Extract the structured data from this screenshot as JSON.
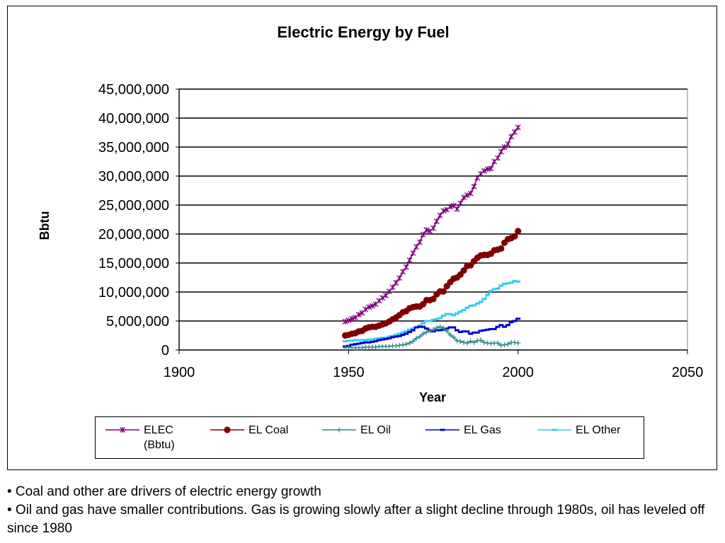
{
  "chart_data": {
    "type": "line",
    "title": "Electric Energy by Fuel",
    "xlabel": "Year",
    "ylabel": "Bbtu",
    "xlim": [
      1900,
      2050
    ],
    "ylim": [
      0,
      45000000
    ],
    "xticks": [
      "1900",
      "1950",
      "2000",
      "2050"
    ],
    "yticks": [
      "0",
      "5,000,000",
      "10,000,000",
      "15,000,000",
      "20,000,000",
      "25,000,000",
      "30,000,000",
      "35,000,000",
      "40,000,000",
      "45,000,000"
    ],
    "grid": true,
    "legend_position": "bottom",
    "series": [
      {
        "name": "ELEC (Bbtu)",
        "color": "#800080",
        "marker": "star",
        "points": [
          [
            1949,
            4900000
          ],
          [
            1950,
            5100000
          ],
          [
            1951,
            5400000
          ],
          [
            1952,
            5600000
          ],
          [
            1953,
            6100000
          ],
          [
            1954,
            6400000
          ],
          [
            1955,
            7000000
          ],
          [
            1956,
            7400000
          ],
          [
            1957,
            7600000
          ],
          [
            1958,
            7900000
          ],
          [
            1959,
            8500000
          ],
          [
            1960,
            9000000
          ],
          [
            1961,
            9400000
          ],
          [
            1962,
            10100000
          ],
          [
            1963,
            10800000
          ],
          [
            1964,
            11600000
          ],
          [
            1965,
            12400000
          ],
          [
            1966,
            13500000
          ],
          [
            1967,
            14300000
          ],
          [
            1968,
            15500000
          ],
          [
            1969,
            16700000
          ],
          [
            1970,
            17800000
          ],
          [
            1971,
            18600000
          ],
          [
            1972,
            19900000
          ],
          [
            1973,
            20700000
          ],
          [
            1974,
            20500000
          ],
          [
            1975,
            21000000
          ],
          [
            1976,
            22200000
          ],
          [
            1977,
            23200000
          ],
          [
            1978,
            24000000
          ],
          [
            1979,
            24200000
          ],
          [
            1980,
            24700000
          ],
          [
            1981,
            24900000
          ],
          [
            1982,
            24300000
          ],
          [
            1983,
            25300000
          ],
          [
            1984,
            26300000
          ],
          [
            1985,
            26700000
          ],
          [
            1986,
            27000000
          ],
          [
            1987,
            28200000
          ],
          [
            1988,
            29700000
          ],
          [
            1989,
            30400000
          ],
          [
            1990,
            30900000
          ],
          [
            1991,
            31200000
          ],
          [
            1992,
            31300000
          ],
          [
            1993,
            32500000
          ],
          [
            1994,
            33100000
          ],
          [
            1995,
            34200000
          ],
          [
            1996,
            35000000
          ],
          [
            1997,
            35500000
          ],
          [
            1998,
            36800000
          ],
          [
            1999,
            37600000
          ],
          [
            2000,
            38400000
          ]
        ]
      },
      {
        "name": "EL Coal",
        "color": "#800000",
        "marker": "circle",
        "points": [
          [
            1949,
            2500000
          ],
          [
            1950,
            2600000
          ],
          [
            1951,
            2800000
          ],
          [
            1952,
            2900000
          ],
          [
            1953,
            3200000
          ],
          [
            1954,
            3300000
          ],
          [
            1955,
            3700000
          ],
          [
            1956,
            3900000
          ],
          [
            1957,
            4000000
          ],
          [
            1958,
            4000000
          ],
          [
            1959,
            4200000
          ],
          [
            1960,
            4400000
          ],
          [
            1961,
            4600000
          ],
          [
            1962,
            4900000
          ],
          [
            1963,
            5300000
          ],
          [
            1964,
            5600000
          ],
          [
            1965,
            6000000
          ],
          [
            1966,
            6500000
          ],
          [
            1967,
            6700000
          ],
          [
            1968,
            7200000
          ],
          [
            1969,
            7400000
          ],
          [
            1970,
            7500000
          ],
          [
            1971,
            7500000
          ],
          [
            1972,
            7900000
          ],
          [
            1973,
            8600000
          ],
          [
            1974,
            8600000
          ],
          [
            1975,
            8800000
          ],
          [
            1976,
            9600000
          ],
          [
            1977,
            10100000
          ],
          [
            1978,
            10100000
          ],
          [
            1979,
            11000000
          ],
          [
            1980,
            11700000
          ],
          [
            1981,
            12300000
          ],
          [
            1982,
            12500000
          ],
          [
            1983,
            13000000
          ],
          [
            1984,
            13700000
          ],
          [
            1985,
            14500000
          ],
          [
            1986,
            14600000
          ],
          [
            1987,
            15300000
          ],
          [
            1988,
            15900000
          ],
          [
            1989,
            16300000
          ],
          [
            1990,
            16400000
          ],
          [
            1991,
            16400000
          ],
          [
            1992,
            16600000
          ],
          [
            1993,
            17200000
          ],
          [
            1994,
            17300000
          ],
          [
            1995,
            17500000
          ],
          [
            1996,
            18500000
          ],
          [
            1997,
            19100000
          ],
          [
            1998,
            19300000
          ],
          [
            1999,
            19600000
          ],
          [
            2000,
            20500000
          ]
        ]
      },
      {
        "name": "EL Oil",
        "color": "#2E8B8B",
        "marker": "plus",
        "points": [
          [
            1949,
            400000
          ],
          [
            1950,
            500000
          ],
          [
            1951,
            400000
          ],
          [
            1952,
            400000
          ],
          [
            1953,
            400000
          ],
          [
            1954,
            400000
          ],
          [
            1955,
            500000
          ],
          [
            1956,
            500000
          ],
          [
            1957,
            500000
          ],
          [
            1958,
            500000
          ],
          [
            1959,
            600000
          ],
          [
            1960,
            600000
          ],
          [
            1961,
            600000
          ],
          [
            1962,
            600000
          ],
          [
            1963,
            700000
          ],
          [
            1964,
            700000
          ],
          [
            1965,
            800000
          ],
          [
            1966,
            900000
          ],
          [
            1967,
            1000000
          ],
          [
            1968,
            1200000
          ],
          [
            1969,
            1500000
          ],
          [
            1970,
            2000000
          ],
          [
            1971,
            2300000
          ],
          [
            1972,
            2800000
          ],
          [
            1973,
            3100000
          ],
          [
            1974,
            3300000
          ],
          [
            1975,
            3500000
          ],
          [
            1976,
            3800000
          ],
          [
            1977,
            4000000
          ],
          [
            1978,
            3800000
          ],
          [
            1979,
            3300000
          ],
          [
            1980,
            2600000
          ],
          [
            1981,
            2200000
          ],
          [
            1982,
            1600000
          ],
          [
            1983,
            1500000
          ],
          [
            1984,
            1300000
          ],
          [
            1985,
            1200000
          ],
          [
            1986,
            1500000
          ],
          [
            1987,
            1300000
          ],
          [
            1988,
            1600000
          ],
          [
            1989,
            1700000
          ],
          [
            1990,
            1300000
          ],
          [
            1991,
            1200000
          ],
          [
            1992,
            1100000
          ],
          [
            1993,
            1200000
          ],
          [
            1994,
            1200000
          ],
          [
            1995,
            800000
          ],
          [
            1996,
            900000
          ],
          [
            1997,
            1000000
          ],
          [
            1998,
            1300000
          ],
          [
            1999,
            1300000
          ],
          [
            2000,
            1200000
          ]
        ]
      },
      {
        "name": "EL Gas",
        "color": "#0000CC",
        "marker": "dash",
        "points": [
          [
            1949,
            600000
          ],
          [
            1950,
            700000
          ],
          [
            1951,
            900000
          ],
          [
            1952,
            1000000
          ],
          [
            1953,
            1100000
          ],
          [
            1954,
            1200000
          ],
          [
            1955,
            1300000
          ],
          [
            1956,
            1300000
          ],
          [
            1957,
            1400000
          ],
          [
            1958,
            1500000
          ],
          [
            1959,
            1700000
          ],
          [
            1960,
            1800000
          ],
          [
            1961,
            1900000
          ],
          [
            1962,
            2000000
          ],
          [
            1963,
            2200000
          ],
          [
            1964,
            2300000
          ],
          [
            1965,
            2400000
          ],
          [
            1966,
            2600000
          ],
          [
            1967,
            2800000
          ],
          [
            1968,
            3100000
          ],
          [
            1969,
            3400000
          ],
          [
            1970,
            3900000
          ],
          [
            1971,
            4000000
          ],
          [
            1972,
            4000000
          ],
          [
            1973,
            3700000
          ],
          [
            1974,
            3400000
          ],
          [
            1975,
            3200000
          ],
          [
            1976,
            3400000
          ],
          [
            1977,
            3400000
          ],
          [
            1978,
            3500000
          ],
          [
            1979,
            3700000
          ],
          [
            1980,
            3900000
          ],
          [
            1981,
            3900000
          ],
          [
            1982,
            3400000
          ],
          [
            1983,
            3100000
          ],
          [
            1984,
            3200000
          ],
          [
            1985,
            3200000
          ],
          [
            1986,
            2800000
          ],
          [
            1987,
            3000000
          ],
          [
            1988,
            3000000
          ],
          [
            1989,
            3300000
          ],
          [
            1990,
            3400000
          ],
          [
            1991,
            3500000
          ],
          [
            1992,
            3600000
          ],
          [
            1993,
            3600000
          ],
          [
            1994,
            4000000
          ],
          [
            1995,
            4300000
          ],
          [
            1996,
            4000000
          ],
          [
            1997,
            4300000
          ],
          [
            1998,
            4800000
          ],
          [
            1999,
            5000000
          ],
          [
            2000,
            5400000
          ]
        ]
      },
      {
        "name": "EL Other",
        "color": "#33CCEE",
        "marker": "dash",
        "points": [
          [
            1949,
            1500000
          ],
          [
            1950,
            1600000
          ],
          [
            1951,
            1600000
          ],
          [
            1952,
            1700000
          ],
          [
            1953,
            1700000
          ],
          [
            1954,
            1700000
          ],
          [
            1955,
            1700000
          ],
          [
            1956,
            1800000
          ],
          [
            1957,
            1800000
          ],
          [
            1958,
            1900000
          ],
          [
            1959,
            2000000
          ],
          [
            1960,
            2100000
          ],
          [
            1961,
            2100000
          ],
          [
            1962,
            2300000
          ],
          [
            1963,
            2400000
          ],
          [
            1964,
            2600000
          ],
          [
            1965,
            2800000
          ],
          [
            1966,
            3000000
          ],
          [
            1967,
            3200000
          ],
          [
            1968,
            3500000
          ],
          [
            1969,
            3700000
          ],
          [
            1970,
            3900000
          ],
          [
            1971,
            4200000
          ],
          [
            1972,
            4600000
          ],
          [
            1973,
            5000000
          ],
          [
            1974,
            5000000
          ],
          [
            1975,
            5200000
          ],
          [
            1976,
            5300000
          ],
          [
            1977,
            5500000
          ],
          [
            1978,
            5900000
          ],
          [
            1979,
            6200000
          ],
          [
            1980,
            6200000
          ],
          [
            1981,
            6000000
          ],
          [
            1982,
            6300000
          ],
          [
            1983,
            6600000
          ],
          [
            1984,
            6900000
          ],
          [
            1985,
            7300000
          ],
          [
            1986,
            7600000
          ],
          [
            1987,
            7700000
          ],
          [
            1988,
            8000000
          ],
          [
            1989,
            8300000
          ],
          [
            1990,
            8800000
          ],
          [
            1991,
            9500000
          ],
          [
            1992,
            10200000
          ],
          [
            1993,
            10500000
          ],
          [
            1994,
            10600000
          ],
          [
            1995,
            11100000
          ],
          [
            1996,
            11400000
          ],
          [
            1997,
            11500000
          ],
          [
            1998,
            11600000
          ],
          [
            1999,
            11900000
          ],
          [
            2000,
            11800000
          ]
        ]
      }
    ]
  },
  "legend": [
    {
      "label_line1": "ELEC",
      "label_line2": "(Bbtu)",
      "color": "#800080",
      "marker": "star"
    },
    {
      "label_line1": "EL Coal",
      "label_line2": "",
      "color": "#800000",
      "marker": "circle"
    },
    {
      "label_line1": "EL Oil",
      "label_line2": "",
      "color": "#2E8B8B",
      "marker": "plus"
    },
    {
      "label_line1": "EL Gas",
      "label_line2": "",
      "color": "#0000CC",
      "marker": "dash"
    },
    {
      "label_line1": "EL Other",
      "label_line2": "",
      "color": "#33CCEE",
      "marker": "dash"
    }
  ],
  "notes": [
    "• Coal and other are drivers of electric energy growth",
    "• Oil and gas have smaller contributions.  Gas is growing slowly after a slight decline through 1980s, oil has leveled off since 1980"
  ]
}
